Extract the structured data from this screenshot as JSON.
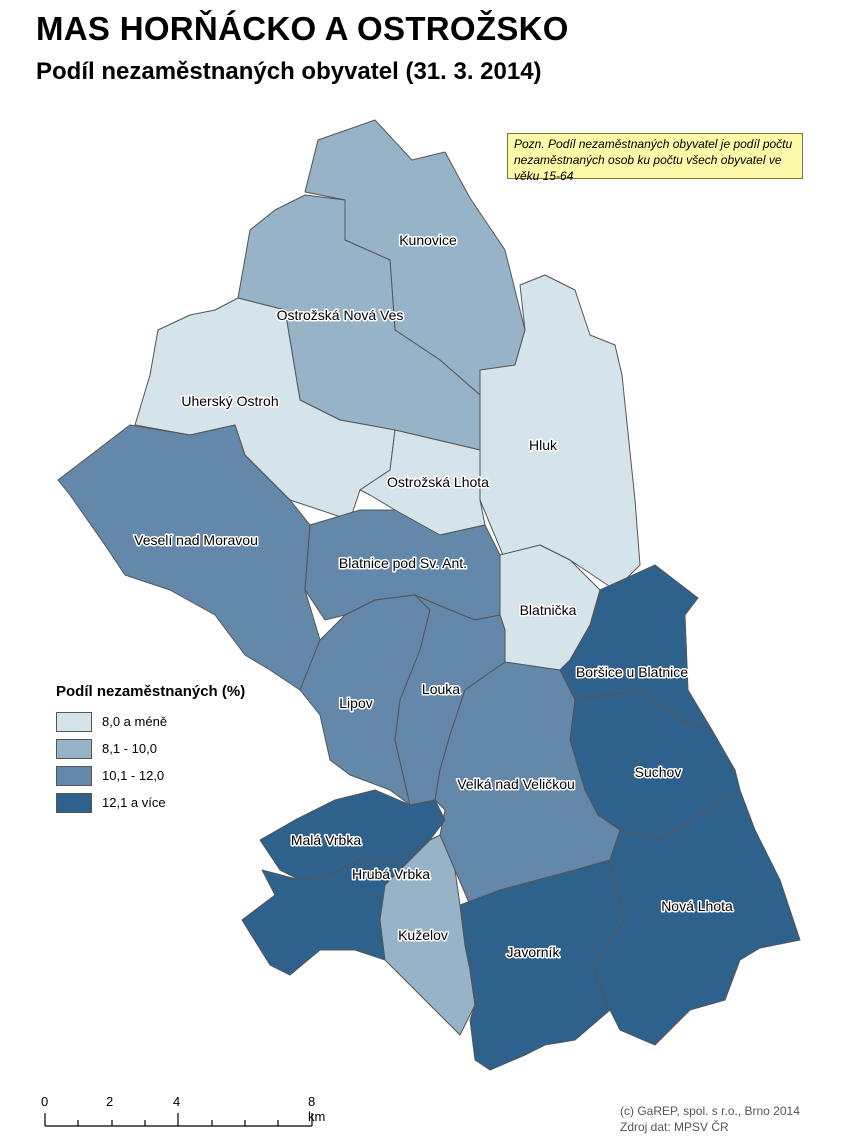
{
  "header": {
    "title": "MAS HORŇÁCKO A OSTROŽSKO",
    "subtitle": "Podíl nezaměstnaných obyvatel (31. 3. 2014)"
  },
  "note": "Pozn. Podíl nezaměstnaných obyvatel je podíl počtu nezaměstnaných osob ku počtu všech obyvatel ve věku 15-64",
  "legend": {
    "title": "Podíl nezaměstnaných (%)",
    "classes": [
      {
        "label": "8,0 a méně",
        "color": "#d5e4ea"
      },
      {
        "label": "8,1 - 10,0",
        "color": "#97b3c8"
      },
      {
        "label": "10,1 - 12,0",
        "color": "#6488aa"
      },
      {
        "label": "12,1 a více",
        "color": "#2e618c"
      }
    ]
  },
  "municipalities": [
    {
      "name": "Kunovice",
      "class": 1
    },
    {
      "name": "Ostrožská Nová Ves",
      "class": 1
    },
    {
      "name": "Uherský Ostroh",
      "class": 0
    },
    {
      "name": "Hluk",
      "class": 0
    },
    {
      "name": "Ostrožská Lhota",
      "class": 0
    },
    {
      "name": "Veselí nad Moravou",
      "class": 2
    },
    {
      "name": "Blatnice pod Sv. Ant.",
      "class": 2
    },
    {
      "name": "Blatnička",
      "class": 0
    },
    {
      "name": "Boršice u Blatnice",
      "class": 3
    },
    {
      "name": "Lipov",
      "class": 2
    },
    {
      "name": "Louka",
      "class": 2
    },
    {
      "name": "Velká nad Veličkou",
      "class": 2
    },
    {
      "name": "Suchov",
      "class": 3
    },
    {
      "name": "Malá Vrbka",
      "class": 3
    },
    {
      "name": "Hrubá Vrbka",
      "class": 3
    },
    {
      "name": "Kuželov",
      "class": 1
    },
    {
      "name": "Javorník",
      "class": 3
    },
    {
      "name": "Nová Lhota",
      "class": 3
    }
  ],
  "scale": {
    "ticks": [
      "0",
      "2",
      "4",
      "8 km"
    ]
  },
  "credits": {
    "line1": "(c) GaREP, spol. s r.o., Brno 2014",
    "line2": "Zdroj dat: MPSV ČR"
  }
}
